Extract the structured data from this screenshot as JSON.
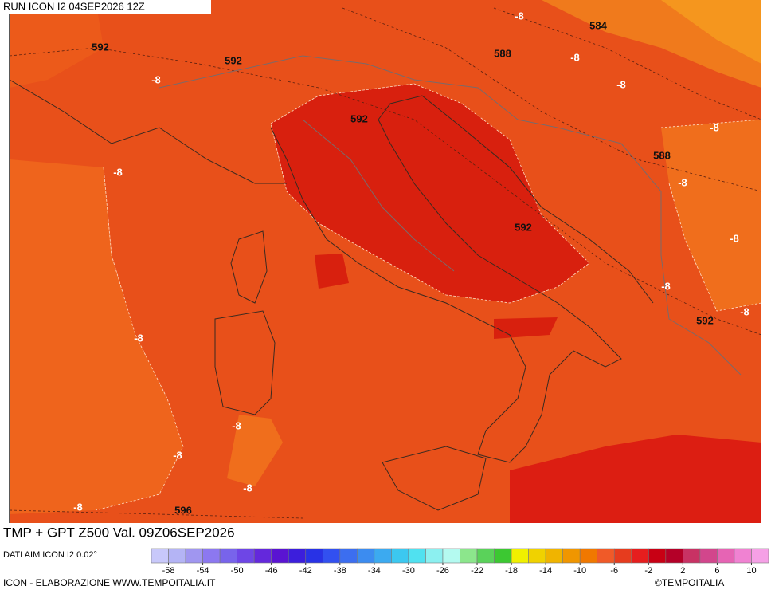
{
  "header": {
    "run": "RUN ICON I2 04SEP2026 12Z"
  },
  "map": {
    "contour_labels": [
      592,
      592,
      -8,
      -8,
      584,
      588,
      -8,
      -8,
      592,
      -8,
      588,
      -8,
      -8,
      592,
      -8,
      -8,
      -8,
      592,
      -8,
      -8,
      -8,
      -8,
      -8,
      596
    ]
  },
  "footer": {
    "title": "TMP + GPT Z500 Val. 09Z06SEP2026",
    "source": "DATI AIM ICON I2 0.02°",
    "credit": "ICON - ELABORAZIONE WWW.TEMPOITALIA.IT",
    "brand": "©TEMPOITALIA"
  },
  "colorbar": {
    "min": -60,
    "max": 12,
    "step": 2,
    "colors": [
      "#c8c8fa",
      "#b4b4f5",
      "#a096f0",
      "#8c78f0",
      "#7864eb",
      "#6e46e6",
      "#6428dc",
      "#5a14d2",
      "#3c1edc",
      "#2832e6",
      "#3250f0",
      "#3c6ef0",
      "#3c8cf0",
      "#3caaf0",
      "#3cc8f0",
      "#50e1f0",
      "#8cf0f0",
      "#b4faf0",
      "#8ce68c",
      "#5ad25a",
      "#3cc832",
      "#f0f000",
      "#f0d200",
      "#f0b400",
      "#f09600",
      "#f07800",
      "#f05a28",
      "#e63c1e",
      "#e61e1e",
      "#c80014",
      "#b40028",
      "#c83264",
      "#d2468c",
      "#e664b4",
      "#f082d2",
      "#f5a0e6"
    ],
    "ticks": [
      -58,
      -54,
      -50,
      -46,
      -42,
      -38,
      -34,
      -30,
      -26,
      -22,
      -18,
      -14,
      -10,
      -6,
      -2,
      2,
      6,
      10
    ]
  }
}
